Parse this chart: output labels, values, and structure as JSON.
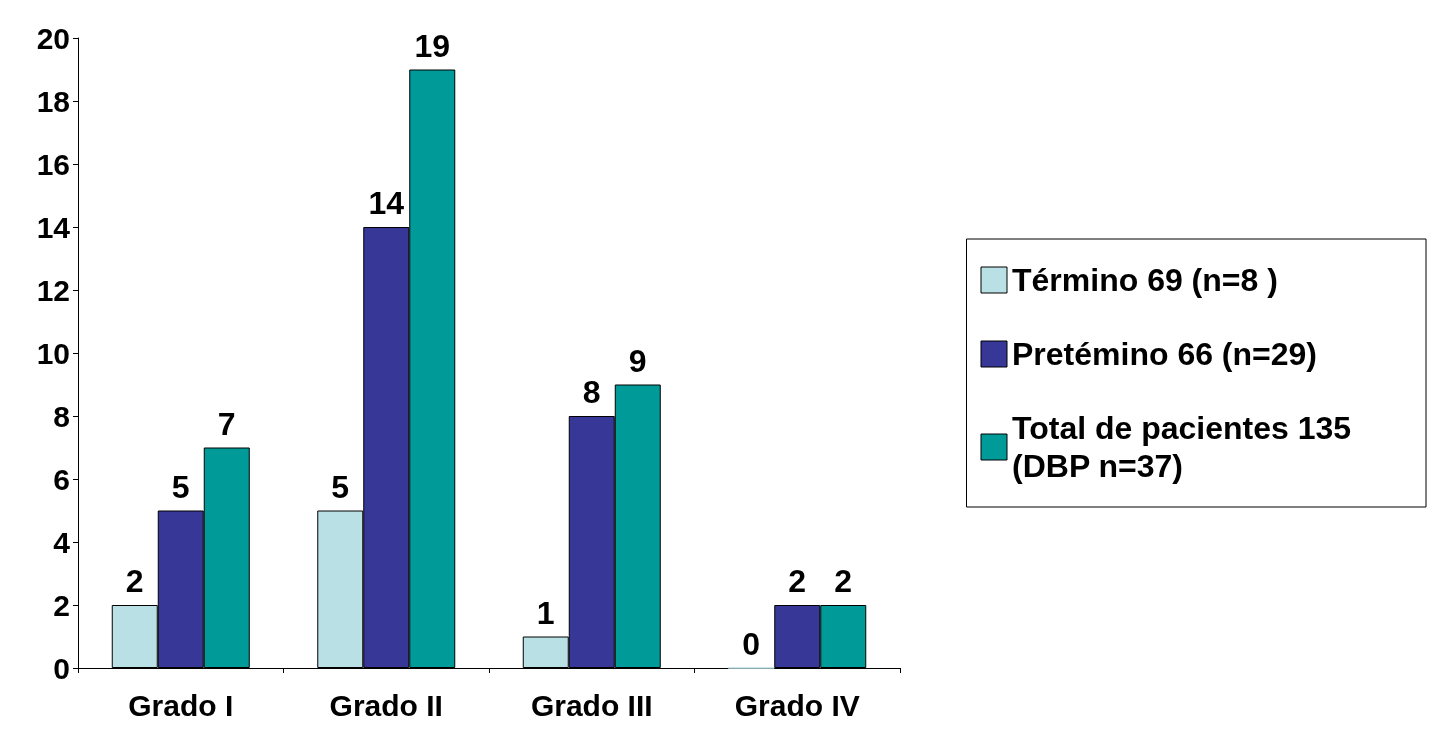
{
  "chart_data": {
    "type": "bar",
    "categories": [
      "Grado I",
      "Grado II",
      "Grado III",
      "Grado IV"
    ],
    "series": [
      {
        "name": "Término 69 (n=8 )",
        "color": "#b9e0e4",
        "values": [
          2,
          5,
          1,
          0
        ]
      },
      {
        "name": "Pretémino 66 (n=29)",
        "color": "#363797",
        "values": [
          5,
          14,
          8,
          2
        ]
      },
      {
        "name": "Total de pacientes 135 (DBP n=37)",
        "color": "#009b99",
        "values": [
          7,
          19,
          9,
          2
        ]
      }
    ],
    "ylim": [
      0,
      20
    ],
    "yticks": [
      0,
      2,
      4,
      6,
      8,
      10,
      12,
      14,
      16,
      18,
      20
    ],
    "data_labels": true,
    "grid": false,
    "legend": "right"
  }
}
